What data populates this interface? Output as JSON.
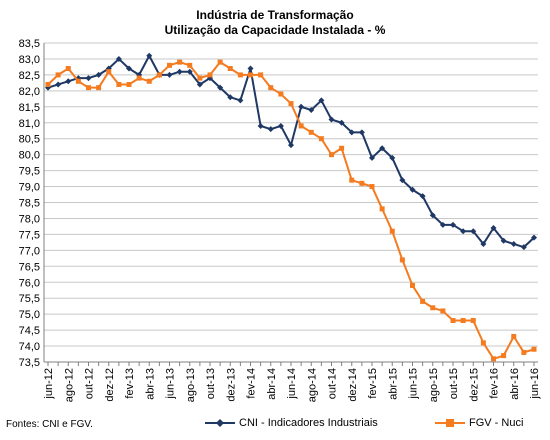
{
  "chart_data": {
    "type": "line",
    "title": "Indústria de Transformação",
    "subtitle": "Utilização da Capacidade Instalada - %",
    "source": "Fontes: CNI e FGV.",
    "ylim": [
      73.5,
      83.5
    ],
    "y_ticks": [
      "73,5",
      "74,0",
      "74,5",
      "75,0",
      "75,5",
      "76,0",
      "76,5",
      "77,0",
      "77,5",
      "78,0",
      "78,5",
      "79,0",
      "79,5",
      "80,0",
      "80,5",
      "81,0",
      "81,5",
      "82,0",
      "82,5",
      "83,0",
      "83,5"
    ],
    "x_tick_labels": [
      "jun-12",
      "ago-12",
      "out-12",
      "dez-12",
      "fev-13",
      "abr-13",
      "jun-13",
      "ago-13",
      "out-13",
      "dez-13",
      "fev-14",
      "abr-14",
      "jun-14",
      "ago-14",
      "out-14",
      "dez-14",
      "fev-15",
      "abr-15",
      "jun-15",
      "ago-15",
      "out-15",
      "dez-15",
      "fev-16",
      "abr-16",
      "jun-16"
    ],
    "grid": true,
    "legend_position": "bottom",
    "series": [
      {
        "name": "CNI - Indicadores Industriais",
        "color": "#1f3864",
        "marker": "diamond",
        "values": [
          82.1,
          82.2,
          82.3,
          82.4,
          82.4,
          82.5,
          82.7,
          83.0,
          82.7,
          82.5,
          83.1,
          82.5,
          82.5,
          82.6,
          82.6,
          82.2,
          82.4,
          82.1,
          81.8,
          81.7,
          82.7,
          80.9,
          80.8,
          80.9,
          80.3,
          81.5,
          81.4,
          81.7,
          81.1,
          81.0,
          80.7,
          80.7,
          79.9,
          80.2,
          79.9,
          79.2,
          78.9,
          78.7,
          78.1,
          77.8,
          77.8,
          77.6,
          77.6,
          77.2,
          77.7,
          77.3,
          77.2,
          77.1,
          77.4
        ]
      },
      {
        "name": "FGV - Nuci",
        "color": "#f47b20",
        "marker": "square",
        "values": [
          82.2,
          82.5,
          82.7,
          82.3,
          82.1,
          82.1,
          82.6,
          82.2,
          82.2,
          82.4,
          82.3,
          82.5,
          82.8,
          82.9,
          82.8,
          82.4,
          82.5,
          82.9,
          82.7,
          82.5,
          82.5,
          82.5,
          82.1,
          81.9,
          81.6,
          80.9,
          80.7,
          80.5,
          80.0,
          80.2,
          79.2,
          79.1,
          79.0,
          78.3,
          77.6,
          76.7,
          75.9,
          75.4,
          75.2,
          75.1,
          74.8,
          74.8,
          74.8,
          74.1,
          73.6,
          73.7,
          74.3,
          73.8,
          73.9
        ]
      }
    ]
  }
}
